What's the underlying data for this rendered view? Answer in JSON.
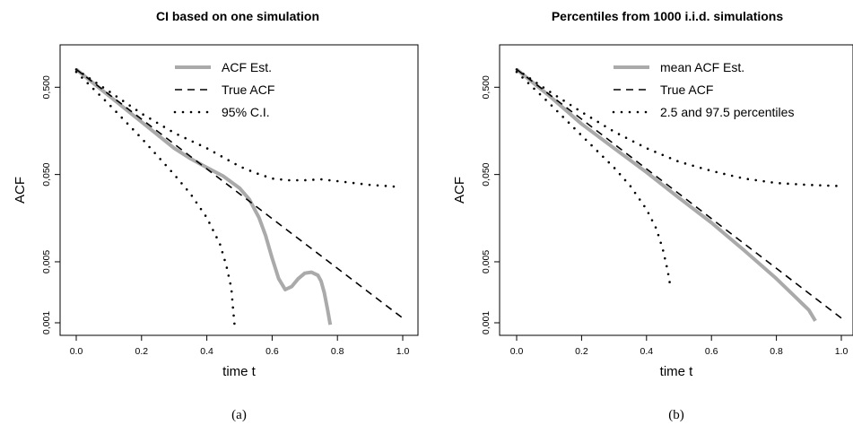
{
  "chart_data": [
    {
      "type": "line",
      "panel": "(a)",
      "title": "CI based on one simulation",
      "xlabel": "time t",
      "ylabel": "ACF",
      "caption": "(a)",
      "xlim": [
        0,
        1
      ],
      "ylim": [
        0.001,
        1.0
      ],
      "yscale": "log",
      "xticks": [
        0.0,
        0.2,
        0.4,
        0.6,
        0.8,
        1.0
      ],
      "xtick_labels": [
        "0.0",
        "0.2",
        "0.4",
        "0.6",
        "0.8",
        "1.0"
      ],
      "yticks": [
        0.001,
        0.005,
        0.05,
        0.5
      ],
      "ytick_labels": [
        "0,001",
        "0,005",
        "0,050",
        "0,500"
      ],
      "legend_position": "top-right",
      "series": [
        {
          "name": "ACF Est.",
          "style": "solid",
          "color": "#aaaaaa",
          "x": [
            0.0,
            0.1,
            0.2,
            0.3,
            0.35,
            0.4,
            0.45,
            0.5,
            0.53,
            0.56,
            0.58,
            0.6,
            0.62,
            0.64,
            0.66,
            0.68,
            0.7,
            0.72,
            0.74,
            0.75,
            0.76,
            0.77,
            0.778
          ],
          "y": [
            0.8,
            0.4,
            0.2,
            0.1,
            0.076,
            0.06,
            0.048,
            0.035,
            0.026,
            0.016,
            0.01,
            0.0055,
            0.0032,
            0.0024,
            0.0026,
            0.0032,
            0.0037,
            0.0038,
            0.0035,
            0.003,
            0.0022,
            0.0014,
            0.00095
          ]
        },
        {
          "name": "True ACF",
          "style": "dashed",
          "color": "#000000",
          "x": [
            0.0,
            1.0
          ],
          "y": [
            0.8,
            0.00113
          ]
        },
        {
          "name": "95% C.I.",
          "style": "dotted",
          "color": "#000000",
          "x": [
            0.0,
            0.1,
            0.2,
            0.3,
            0.4,
            0.5,
            0.55,
            0.6,
            0.65,
            0.7,
            0.75,
            0.8,
            0.85,
            0.9,
            0.95,
            0.99
          ],
          "y": [
            0.8,
            0.45,
            0.25,
            0.15,
            0.1,
            0.062,
            0.052,
            0.045,
            0.043,
            0.043,
            0.044,
            0.042,
            0.04,
            0.038,
            0.037,
            0.036
          ]
        },
        {
          "name": "95% C.I. (lower)",
          "style": "dotted",
          "color": "#000000",
          "x": [
            0.0,
            0.1,
            0.2,
            0.3,
            0.35,
            0.4,
            0.44,
            0.46,
            0.475,
            0.48,
            0.485
          ],
          "y": [
            0.75,
            0.32,
            0.13,
            0.05,
            0.03,
            0.016,
            0.008,
            0.0045,
            0.0025,
            0.0015,
            0.00095
          ]
        }
      ]
    },
    {
      "type": "line",
      "panel": "(b)",
      "title": "Percentiles from 1000 i.i.d. simulations",
      "xlabel": "time t",
      "ylabel": "ACF",
      "caption": "(b)",
      "xlim": [
        0,
        1
      ],
      "ylim": [
        0.001,
        1.0
      ],
      "yscale": "log",
      "xticks": [
        0.0,
        0.2,
        0.4,
        0.6,
        0.8,
        1.0
      ],
      "xtick_labels": [
        "0.0",
        "0.2",
        "0.4",
        "0.6",
        "0.8",
        "1.0"
      ],
      "yticks": [
        0.001,
        0.005,
        0.05,
        0.5
      ],
      "ytick_labels": [
        "0,001",
        "0,005",
        "0,050",
        "0,500"
      ],
      "legend_position": "top-right",
      "series": [
        {
          "name": "mean ACF Est.",
          "style": "solid",
          "color": "#aaaaaa",
          "x": [
            0.0,
            0.1,
            0.2,
            0.3,
            0.4,
            0.5,
            0.6,
            0.7,
            0.8,
            0.9,
            0.92
          ],
          "y": [
            0.8,
            0.4,
            0.19,
            0.1,
            0.053,
            0.027,
            0.014,
            0.0068,
            0.0032,
            0.0014,
            0.00105
          ]
        },
        {
          "name": "True ACF",
          "style": "dashed",
          "color": "#000000",
          "x": [
            0.0,
            1.0
          ],
          "y": [
            0.8,
            0.00113
          ]
        },
        {
          "name": "2.5 and 97.5 percentiles",
          "style": "dotted",
          "color": "#000000",
          "x": [
            0.0,
            0.1,
            0.2,
            0.3,
            0.4,
            0.5,
            0.6,
            0.7,
            0.8,
            0.9,
            0.99
          ],
          "y": [
            0.8,
            0.45,
            0.26,
            0.155,
            0.1,
            0.07,
            0.055,
            0.045,
            0.04,
            0.038,
            0.037
          ]
        },
        {
          "name": "2.5 percentile (lower)",
          "style": "dotted",
          "color": "#000000",
          "x": [
            0.0,
            0.1,
            0.2,
            0.3,
            0.35,
            0.4,
            0.43,
            0.45,
            0.465,
            0.475
          ],
          "y": [
            0.75,
            0.33,
            0.14,
            0.06,
            0.037,
            0.02,
            0.012,
            0.007,
            0.004,
            0.0024
          ]
        }
      ]
    }
  ]
}
